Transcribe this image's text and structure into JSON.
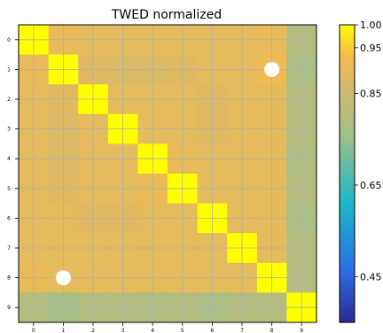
{
  "chart_data": {
    "type": "heatmap",
    "title": "TWED normalized",
    "xlabel": "",
    "ylabel": "",
    "x_ticks": [
      "0",
      "1",
      "2",
      "3",
      "4",
      "5",
      "6",
      "7",
      "8",
      "9"
    ],
    "y_ticks": [
      "0",
      "1",
      "2",
      "3",
      "4",
      "5",
      "6",
      "7",
      "8",
      "9"
    ],
    "grid": true,
    "colormap": "plasma-like (dark blue → cyan → tan → yellow)",
    "colorbar": {
      "range": [
        0.35,
        1.0
      ],
      "tick_labels": [
        "1.00",
        "0.95",
        "0.85",
        "0.65",
        "0.45"
      ],
      "tick_values": [
        1.0,
        0.95,
        0.85,
        0.65,
        0.45
      ]
    },
    "values": [
      [
        1.0,
        0.91,
        0.9,
        0.9,
        0.9,
        0.9,
        0.9,
        0.9,
        0.91,
        0.8
      ],
      [
        0.91,
        1.0,
        0.89,
        0.88,
        0.88,
        0.89,
        0.9,
        0.9,
        0.92,
        0.78
      ],
      [
        0.9,
        0.89,
        1.0,
        0.9,
        0.9,
        0.9,
        0.89,
        0.9,
        0.9,
        0.8
      ],
      [
        0.9,
        0.88,
        0.9,
        1.0,
        0.9,
        0.9,
        0.89,
        0.9,
        0.9,
        0.8
      ],
      [
        0.9,
        0.88,
        0.9,
        0.9,
        1.0,
        0.91,
        0.9,
        0.9,
        0.9,
        0.79
      ],
      [
        0.9,
        0.89,
        0.9,
        0.9,
        0.91,
        1.0,
        0.9,
        0.9,
        0.9,
        0.8
      ],
      [
        0.9,
        0.9,
        0.89,
        0.89,
        0.9,
        0.9,
        1.0,
        0.9,
        0.9,
        0.78
      ],
      [
        0.9,
        0.9,
        0.9,
        0.9,
        0.9,
        0.9,
        0.9,
        1.0,
        0.9,
        0.8
      ],
      [
        0.91,
        0.9,
        0.9,
        0.9,
        0.9,
        0.9,
        0.9,
        0.9,
        1.0,
        0.8
      ],
      [
        0.8,
        0.77,
        0.8,
        0.8,
        0.79,
        0.8,
        0.78,
        0.8,
        0.8,
        1.0
      ]
    ],
    "markers": [
      {
        "row": 1,
        "col": 8,
        "shape": "circle",
        "color": "#ffffff"
      },
      {
        "row": 8,
        "col": 1,
        "shape": "circle",
        "color": "#ffffff"
      }
    ]
  }
}
